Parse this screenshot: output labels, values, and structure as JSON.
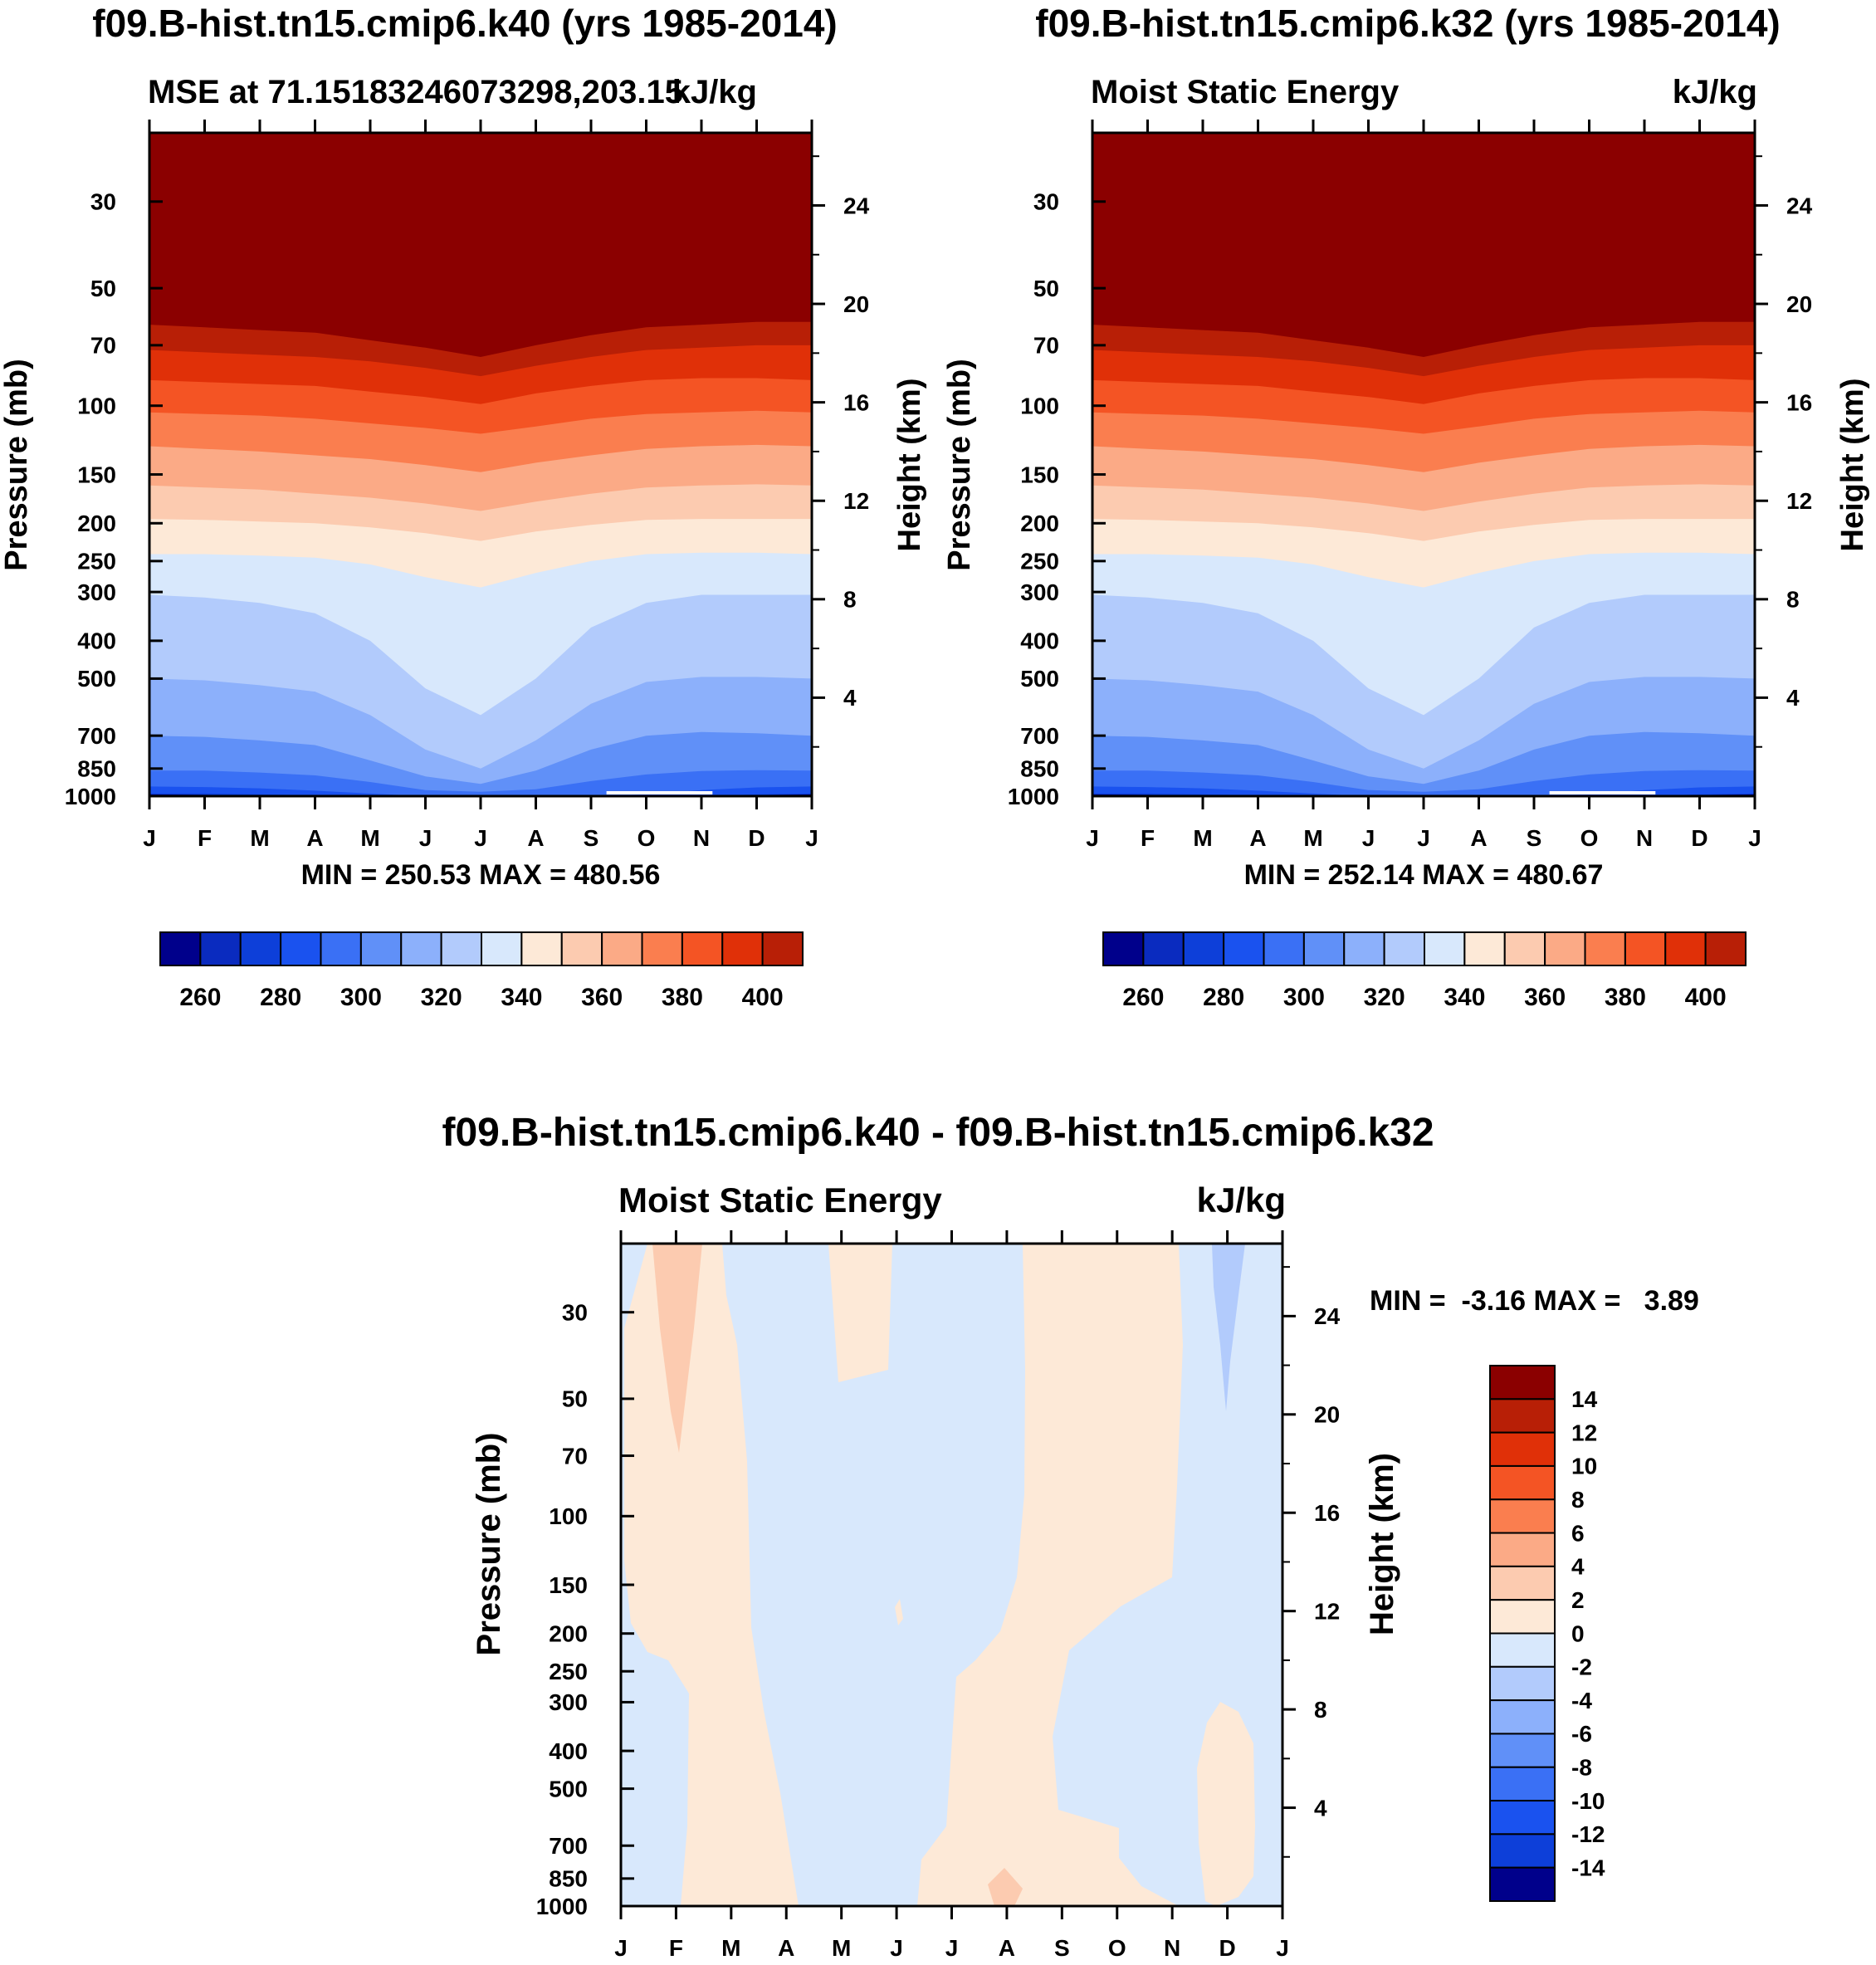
{
  "chart_data": [
    {
      "type": "contour",
      "title": "f09.B-hist.tn15.cmip6.k40 (yrs 1985-2014)",
      "left_string": "MSE at 71.15183246073298,203.15",
      "right_string": "kJ/kg",
      "ylabel": "Pressure (mb)",
      "ylabel_right": "Height (km)",
      "x_tick_labels": [
        "J",
        "F",
        "M",
        "A",
        "M",
        "J",
        "J",
        "A",
        "S",
        "O",
        "N",
        "D",
        "J"
      ],
      "pressure_ticks": [
        "30",
        "50",
        "70",
        "100",
        "150",
        "200",
        "250",
        "300",
        "400",
        "500",
        "700",
        "850",
        "1000"
      ],
      "height_ticks": [
        "24",
        "20",
        "16",
        "12",
        "8",
        "4"
      ],
      "stats_text": "MIN = 250.53 MAX = 480.56",
      "levels_kJkg": [
        255,
        265,
        275,
        285,
        295,
        305,
        315,
        325,
        335,
        345,
        355,
        365,
        375,
        385,
        395,
        405
      ],
      "colorbar_labels": [
        "260",
        "280",
        "300",
        "320",
        "340",
        "360",
        "380",
        "400"
      ],
      "note": "Seasonal cycle of MSE vs pressure; tropopause dips near July"
    },
    {
      "type": "contour",
      "title": "f09.B-hist.tn15.cmip6.k32 (yrs 1985-2014)",
      "left_string": "Moist Static Energy",
      "right_string": "kJ/kg",
      "ylabel": "Pressure (mb)",
      "ylabel_right": "Height (km)",
      "x_tick_labels": [
        "J",
        "F",
        "M",
        "A",
        "M",
        "J",
        "J",
        "A",
        "S",
        "O",
        "N",
        "D",
        "J"
      ],
      "pressure_ticks": [
        "30",
        "50",
        "70",
        "100",
        "150",
        "200",
        "250",
        "300",
        "400",
        "500",
        "700",
        "850",
        "1000"
      ],
      "height_ticks": [
        "24",
        "20",
        "16",
        "12",
        "8",
        "4"
      ],
      "stats_text": "MIN = 252.14 MAX = 480.67",
      "colorbar_labels": [
        "260",
        "280",
        "300",
        "320",
        "340",
        "360",
        "380",
        "400"
      ]
    },
    {
      "type": "contour",
      "title": "f09.B-hist.tn15.cmip6.k40 - f09.B-hist.tn15.cmip6.k32",
      "left_string": "Moist Static Energy",
      "right_string": "kJ/kg",
      "ylabel": "Pressure (mb)",
      "ylabel_right": "Height (km)",
      "x_tick_labels": [
        "J",
        "F",
        "M",
        "A",
        "M",
        "J",
        "J",
        "A",
        "S",
        "O",
        "N",
        "D",
        "J"
      ],
      "pressure_ticks": [
        "30",
        "50",
        "70",
        "100",
        "150",
        "200",
        "250",
        "300",
        "400",
        "500",
        "700",
        "850",
        "1000"
      ],
      "height_ticks": [
        "24",
        "20",
        "16",
        "12",
        "8",
        "4"
      ],
      "stats_text": "MIN =  -3.16 MAX =   3.89",
      "colorbar_labels": [
        "14",
        "12",
        "10",
        "8",
        "6",
        "4",
        "2",
        "0",
        "-2",
        "-4",
        "-6",
        "-8",
        "-10",
        "-12",
        "-14"
      ]
    }
  ],
  "colors": {
    "mse_scale": [
      "#00008b",
      "#0a2bbf",
      "#0d3fd9",
      "#1a52ef",
      "#3a70f5",
      "#6090f8",
      "#8cb0fb",
      "#b2cbfc",
      "#d8e8fc",
      "#fde9d7",
      "#fccbb0",
      "#fbaa86",
      "#fa7e4f",
      "#f45424",
      "#e03008",
      "#b81f06",
      "#8b0000"
    ],
    "diff_scale": [
      "#8b0000",
      "#b81f06",
      "#e03008",
      "#f45424",
      "#fa7e4f",
      "#fbaa86",
      "#fccbb0",
      "#fde9d7",
      "#d8e8fc",
      "#b2cbfc",
      "#8cb0fb",
      "#6090f8",
      "#3a70f5",
      "#1a52ef",
      "#0d3fd9",
      "#0a2bbf",
      "#00008b"
    ]
  }
}
